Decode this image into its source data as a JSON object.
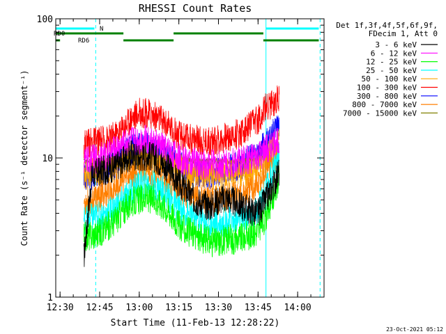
{
  "chart_data": {
    "type": "line",
    "title": "RHESSI Count Rates",
    "xlabel": "Start Time (11-Feb-13 12:28:22)",
    "ylabel": "Count Rate (s⁻¹ detector segment⁻¹)",
    "y_scale": "log",
    "ylim": [
      1,
      100
    ],
    "xlim": [
      "12:28:22",
      "14:10:00"
    ],
    "x_ticks": [
      "12:30",
      "12:45",
      "13:00",
      "13:15",
      "13:30",
      "13:45",
      "14:00"
    ],
    "y_ticks": [
      "1",
      "10",
      "100"
    ],
    "legend_header": [
      "Det 1f,3f,4f,5f,6f,9f,",
      "FDecim 1, Att 0"
    ],
    "legend_position": "top-right",
    "timestamp": "23-Oct-2021 05:12",
    "x": [
      "12:39",
      "12:42",
      "12:45",
      "12:48",
      "12:51",
      "12:54",
      "12:57",
      "13:00",
      "13:03",
      "13:06",
      "13:09",
      "13:12",
      "13:15",
      "13:18",
      "13:21",
      "13:24",
      "13:27",
      "13:30",
      "13:33",
      "13:36",
      "13:39",
      "13:42",
      "13:45",
      "13:48",
      "13:51",
      "13:53"
    ],
    "series": [
      {
        "name": "3 - 6 keV",
        "color": "#000000",
        "values": [
          1.9,
          7.5,
          8.0,
          8.3,
          8.7,
          9.5,
          10.5,
          10.0,
          10.5,
          10.0,
          9.0,
          8.0,
          6.5,
          5.8,
          5.0,
          4.7,
          4.5,
          5.0,
          5.2,
          4.8,
          4.5,
          4.2,
          4.0,
          5.0,
          6.5,
          8.0
        ]
      },
      {
        "name": "6 - 12 keV",
        "color": "#ff00ff",
        "values": [
          9.5,
          9.8,
          10.0,
          10.5,
          11.5,
          12.5,
          13.5,
          13.5,
          13.5,
          12.5,
          12.0,
          11.0,
          10.0,
          9.5,
          9.3,
          9.0,
          9.0,
          9.0,
          9.3,
          9.3,
          9.5,
          9.8,
          10.0,
          11.5,
          12.5,
          14.0
        ]
      },
      {
        "name": "12 - 25 keV",
        "color": "#00ff00",
        "values": [
          2.7,
          2.8,
          2.9,
          3.2,
          3.6,
          4.2,
          4.8,
          5.0,
          5.2,
          5.0,
          4.6,
          4.0,
          3.3,
          3.0,
          2.8,
          2.6,
          2.5,
          2.5,
          2.6,
          2.6,
          2.7,
          2.8,
          3.0,
          3.8,
          5.5,
          7.0
        ]
      },
      {
        "name": "25 - 50 keV",
        "color": "#00ffff",
        "values": [
          3.6,
          3.7,
          3.8,
          4.0,
          4.4,
          5.0,
          5.8,
          6.3,
          6.5,
          6.3,
          5.8,
          5.0,
          4.3,
          4.0,
          3.7,
          3.5,
          3.4,
          3.4,
          3.5,
          3.5,
          3.6,
          3.8,
          4.2,
          5.8,
          8.5,
          10.5
        ]
      },
      {
        "name": "50 - 100 keV",
        "color": "#ffa500",
        "values": [
          7.5,
          7.8,
          8.0,
          8.3,
          8.8,
          9.5,
          10.0,
          9.8,
          9.8,
          9.5,
          9.2,
          8.8,
          8.5,
          8.0,
          7.8,
          7.6,
          7.5,
          7.5,
          7.7,
          7.7,
          7.8,
          8.0,
          8.5,
          10.0,
          11.5,
          13.0
        ]
      },
      {
        "name": "100 - 300 keV",
        "color": "#ff0000",
        "values": [
          12.8,
          13.0,
          13.2,
          13.5,
          14.5,
          16.5,
          19.5,
          21.0,
          21.0,
          20.0,
          18.5,
          16.5,
          14.5,
          14.0,
          13.5,
          13.3,
          13.2,
          13.5,
          14.0,
          14.5,
          15.5,
          17.0,
          19.0,
          23.0,
          25.0,
          28.0
        ]
      },
      {
        "name": "300 - 800 keV",
        "color": "#0000ff",
        "values": [
          7.3,
          7.5,
          7.8,
          8.3,
          9.3,
          10.5,
          11.5,
          12.0,
          12.0,
          11.5,
          10.8,
          9.8,
          8.8,
          8.3,
          8.0,
          7.8,
          7.7,
          7.8,
          8.2,
          8.5,
          9.0,
          9.8,
          10.5,
          13.0,
          15.0,
          17.0
        ]
      },
      {
        "name": "800 - 7000 keV",
        "color": "#ff7f00",
        "values": [
          4.8,
          5.0,
          5.3,
          5.6,
          6.2,
          7.0,
          7.8,
          8.0,
          8.0,
          7.8,
          7.2,
          6.5,
          5.8,
          5.5,
          5.2,
          5.0,
          5.0,
          5.0,
          5.2,
          5.3,
          5.5,
          5.8,
          6.3,
          8.0,
          10.0,
          11.0
        ]
      },
      {
        "name": "7000 - 15000 keV",
        "color": "#808000",
        "values": [
          9.5,
          9.5,
          9.5,
          9.6,
          9.7,
          9.8,
          10.0,
          10.3,
          10.5,
          10.3,
          10.0,
          9.8,
          9.7,
          9.6,
          9.5,
          9.5,
          9.5,
          9.5,
          9.5,
          9.5,
          9.6,
          9.7,
          9.8,
          10.0,
          10.0,
          10.0
        ]
      }
    ],
    "state_bars": [
      {
        "name": "RD0",
        "color": "#008000",
        "segments": [
          [
            "12:28:22",
            "12:54:00"
          ],
          [
            "13:13:00",
            "13:47:00"
          ]
        ]
      },
      {
        "name": "RD6",
        "color": "#008000",
        "segments": [
          [
            "12:28:22",
            "12:30:00"
          ],
          [
            "12:54:00",
            "13:13:00"
          ],
          [
            "13:47:00",
            "14:08:00"
          ]
        ]
      },
      {
        "name": "N",
        "color": "#00ffff",
        "segments": [
          [
            "12:28:22",
            "12:43:00"
          ],
          [
            "13:48:00",
            "14:08:00"
          ]
        ]
      }
    ],
    "vertical_markers": [
      {
        "time": "12:28:22",
        "style": "solid",
        "color": "#00ffff"
      },
      {
        "time": "12:43:30",
        "style": "dashed",
        "color": "#00ffff"
      },
      {
        "time": "13:48:00",
        "style": "solid",
        "color": "#00ffff"
      },
      {
        "time": "14:08:30",
        "style": "dashed",
        "color": "#00ffff"
      }
    ]
  }
}
